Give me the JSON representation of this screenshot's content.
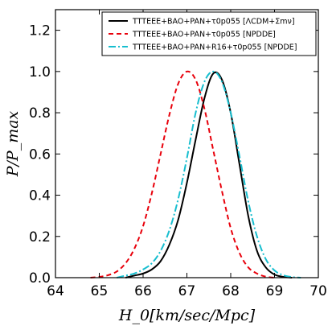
{
  "chart_data": {
    "type": "line",
    "title": "",
    "xlabel": "H_0[km/sec/Mpc]",
    "ylabel": "P/P_max",
    "xlim": [
      64,
      70
    ],
    "ylim": [
      0,
      1.3
    ],
    "xticks": [
      64,
      65,
      66,
      67,
      68,
      69,
      70
    ],
    "yticks": [
      0.0,
      0.2,
      0.4,
      0.6,
      0.8,
      1.0,
      1.2
    ],
    "xtick_labels": [
      "64",
      "65",
      "66",
      "67",
      "68",
      "69",
      "70"
    ],
    "ytick_labels": [
      "0.0",
      "0.2",
      "0.4",
      "0.6",
      "0.8",
      "1.0",
      "1.2"
    ],
    "grid": false,
    "legend": "top-right",
    "series": [
      {
        "name": "TTTEEE+BAO+PAN+τ0p055 [ΛCDM+Σmν]",
        "color": "#000000",
        "style": "solid",
        "x": [
          65.6,
          65.8,
          66.0,
          66.2,
          66.4,
          66.6,
          66.8,
          67.0,
          67.2,
          67.4,
          67.6,
          67.8,
          68.0,
          68.2,
          68.4,
          68.6,
          68.8,
          69.0,
          69.2,
          69.4
        ],
        "y": [
          0.0,
          0.01,
          0.02,
          0.04,
          0.08,
          0.16,
          0.28,
          0.46,
          0.67,
          0.87,
          0.99,
          0.96,
          0.8,
          0.55,
          0.3,
          0.13,
          0.05,
          0.015,
          0.004,
          0.0
        ]
      },
      {
        "name": "TTTEEE+BAO+PAN+τ0p055 [NPDDE]",
        "color": "#e8000b",
        "style": "dashed",
        "x": [
          64.8,
          65.0,
          65.2,
          65.4,
          65.6,
          65.8,
          66.0,
          66.2,
          66.4,
          66.6,
          66.8,
          67.0,
          67.2,
          67.4,
          67.6,
          67.8,
          68.0,
          68.2,
          68.4,
          68.6,
          68.8,
          69.0
        ],
        "y": [
          0.0,
          0.004,
          0.012,
          0.03,
          0.07,
          0.14,
          0.25,
          0.41,
          0.6,
          0.79,
          0.94,
          1.0,
          0.96,
          0.82,
          0.62,
          0.42,
          0.24,
          0.12,
          0.05,
          0.02,
          0.005,
          0.0
        ]
      },
      {
        "name": "TTTEEE+BAO+PAN+R16+τ0p055 [NPDDE]",
        "color": "#17becf",
        "style": "dashdot",
        "x": [
          65.4,
          65.6,
          65.8,
          66.0,
          66.2,
          66.4,
          66.6,
          66.8,
          67.0,
          67.2,
          67.4,
          67.6,
          67.8,
          68.0,
          68.2,
          68.4,
          68.6,
          68.8,
          69.0,
          69.2,
          69.4,
          69.6
        ],
        "y": [
          0.0,
          0.01,
          0.02,
          0.04,
          0.07,
          0.13,
          0.23,
          0.38,
          0.58,
          0.8,
          0.95,
          1.0,
          0.95,
          0.8,
          0.59,
          0.37,
          0.2,
          0.09,
          0.035,
          0.012,
          0.003,
          0.0
        ]
      }
    ]
  }
}
